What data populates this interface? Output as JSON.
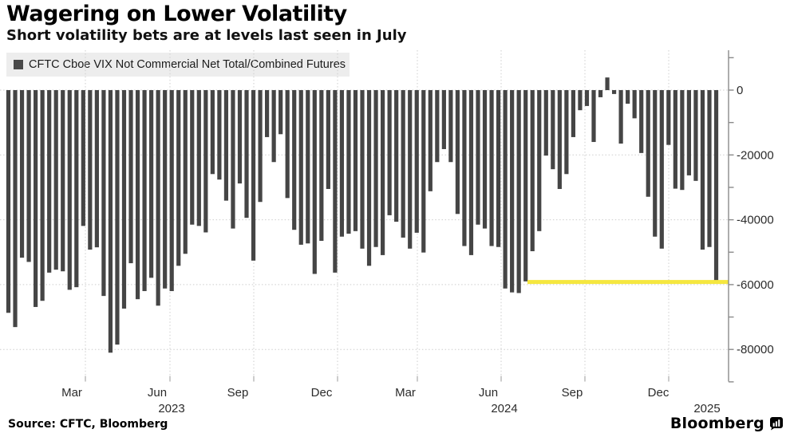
{
  "header": {
    "title": "Wagering on Lower Volatility",
    "subtitle": "Short volatility bets are at levels last seen in July"
  },
  "legend": {
    "label": "CFTC Cboe VIX Not Commercial Net Total/Combined Futures",
    "swatch_color": "#4a4a4a"
  },
  "source": {
    "label": "Source: CFTC, Bloomberg"
  },
  "branding": {
    "logo_text": "Bloomberg"
  },
  "chart_data": {
    "type": "bar",
    "series_name": "CFTC Cboe VIX Not Commercial Net Total/Combined Futures",
    "frequency": "weekly",
    "x_range": "Jan 2023 - Jan 2025",
    "values": [
      -68700,
      -73100,
      -51700,
      -53000,
      -66900,
      -65000,
      -56300,
      -55400,
      -55900,
      -61600,
      -60800,
      -41900,
      -49200,
      -48500,
      -63500,
      -81000,
      -78500,
      -67400,
      -53400,
      -64500,
      -62000,
      -57900,
      -66500,
      -61200,
      -62000,
      -54200,
      -50500,
      -41500,
      -41900,
      -43900,
      -25900,
      -27600,
      -34100,
      -42700,
      -28800,
      -39400,
      -52600,
      -34500,
      -14500,
      -22200,
      -13600,
      -33300,
      -43100,
      -47700,
      -47300,
      -56700,
      -46500,
      -30500,
      -56300,
      -45200,
      -44300,
      -43500,
      -48900,
      -54200,
      -48400,
      -50900,
      -38600,
      -40600,
      -45500,
      -48900,
      -44000,
      -50100,
      -31200,
      -22200,
      -18200,
      -22200,
      -38200,
      -48100,
      -50900,
      -41500,
      -42700,
      -48100,
      -48400,
      -61200,
      -62400,
      -62600,
      -59000,
      -49700,
      -43500,
      -20200,
      -24400,
      -30500,
      -25900,
      -14500,
      -6200,
      -4900,
      -16000,
      -2200,
      3900,
      -1200,
      -16500,
      -4200,
      -8700,
      -19400,
      -32900,
      -45200,
      -48900,
      -16900,
      -30400,
      -30800,
      -26300,
      -28000,
      -49200,
      -48400,
      -58800
    ],
    "bar_color": "#454545",
    "y_ticks": [
      0,
      -20000,
      -40000,
      -60000,
      -80000
    ],
    "y_tick_labels": [
      "0",
      "-20000",
      "-40000",
      "-60000",
      "-80000"
    ],
    "minor_tick_step": 10000,
    "ylim": [
      -90000,
      12000
    ],
    "x_tick_labels": [
      "Mar",
      "Jun",
      "Sep",
      "Dec",
      "Mar",
      "Jun",
      "Sep",
      "Dec"
    ],
    "year_labels": [
      "2023",
      "2024",
      "2025"
    ],
    "grid": "dotted",
    "legend_position": "top-left",
    "annotation_line": {
      "value": -59200,
      "color": "#f5e73f"
    }
  }
}
